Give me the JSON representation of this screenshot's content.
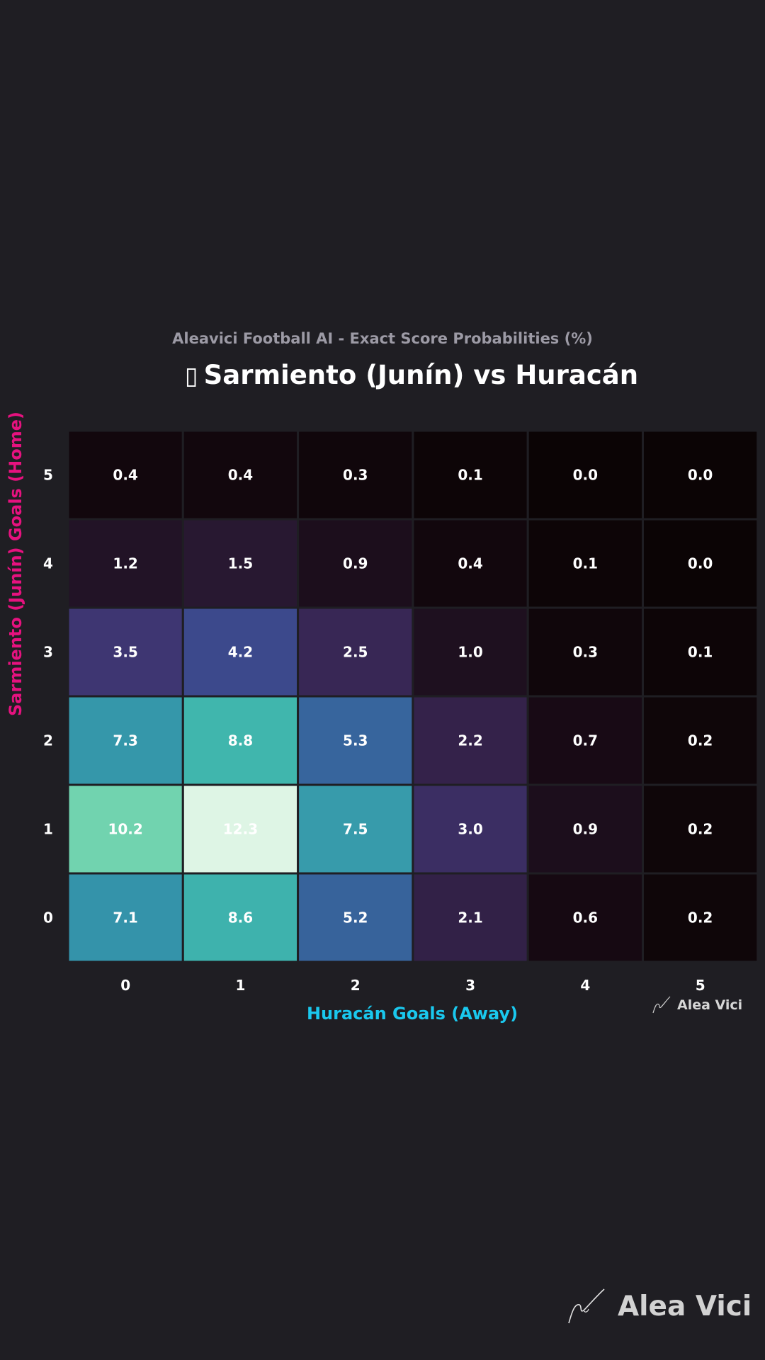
{
  "header": {
    "subtitle": "Aleavici Football AI - Exact Score Probabilities (%)",
    "title_glyph": "▯",
    "title": "Sarmiento (Junín) vs Huracán"
  },
  "chart_data": {
    "type": "heatmap",
    "title": "Sarmiento (Junín) vs Huracán",
    "subtitle": "Aleavici Football AI - Exact Score Probabilities (%)",
    "xlabel": "Huracán Goals (Away)",
    "ylabel": "Sarmiento (Junín) Goals (Home)",
    "x_categories": [
      "0",
      "1",
      "2",
      "3",
      "4",
      "5"
    ],
    "y_categories": [
      "5",
      "4",
      "3",
      "2",
      "1",
      "0"
    ],
    "values": [
      [
        0.4,
        0.4,
        0.3,
        0.1,
        0.0,
        0.0
      ],
      [
        1.2,
        1.5,
        0.9,
        0.4,
        0.1,
        0.0
      ],
      [
        3.5,
        4.2,
        2.5,
        1.0,
        0.3,
        0.1
      ],
      [
        7.3,
        8.8,
        5.3,
        2.2,
        0.7,
        0.2
      ],
      [
        10.2,
        12.3,
        7.5,
        3.0,
        0.9,
        0.2
      ],
      [
        7.1,
        8.6,
        5.2,
        2.1,
        0.6,
        0.2
      ]
    ],
    "colormap": "mako",
    "xlabel_color": "#1ac8ee",
    "ylabel_color": "#e6127f"
  },
  "watermark": {
    "text": "Alea Vici"
  },
  "colors": {
    "background": "#1f1e23"
  }
}
